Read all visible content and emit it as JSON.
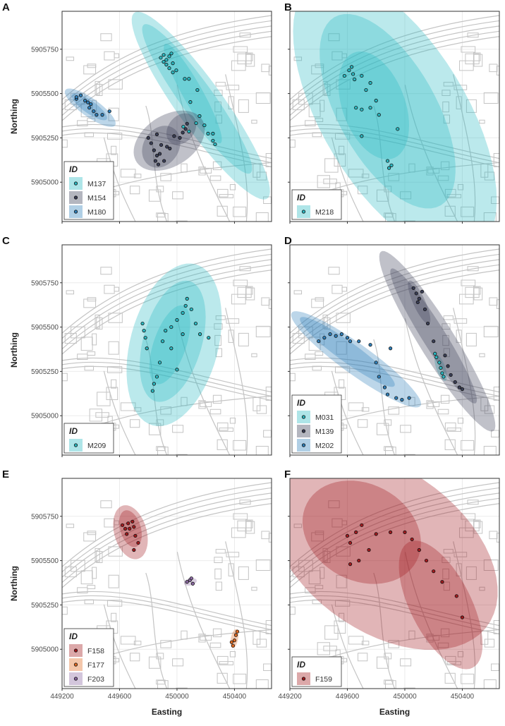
{
  "axes": {
    "x_title": "Easting",
    "y_title": "Northing",
    "x_ticks": [
      449200,
      449600,
      450000,
      450400
    ],
    "y_ticks": [
      5905000,
      5905250,
      5905500,
      5905750
    ],
    "x_tick_labels": [
      "449200",
      "449600",
      "450000",
      "450400"
    ],
    "y_tick_labels": [
      "5905000",
      "5905250",
      "5905500",
      "5905750"
    ],
    "xlim": [
      449200,
      450658
    ],
    "ylim": [
      5904778,
      5905964
    ],
    "grid": true
  },
  "basemap_color": "#c4c4c4",
  "chart_data": [
    {
      "panel": "A",
      "legend_title": "ID",
      "legend_placement": "bottom-left",
      "individuals": [
        {
          "id": "M137",
          "color": "#2bbac3",
          "ranges": [
            {
              "cx": 450166,
              "cy": 5905432,
              "a": 700,
              "b": 150,
              "angle": -48
            },
            {
              "cx": 450140,
              "cy": 5905470,
              "a": 560,
              "b": 105,
              "angle": -48
            },
            {
              "cx": 450110,
              "cy": 5905500,
              "a": 340,
              "b": 65,
              "angle": -55
            }
          ],
          "points": [
            [
              449887,
              5905702
            ],
            [
              449907,
              5905718
            ],
            [
              449926,
              5905690
            ],
            [
              449946,
              5905710
            ],
            [
              449961,
              5905726
            ],
            [
              449926,
              5905663
            ],
            [
              449946,
              5905643
            ],
            [
              449971,
              5905671
            ],
            [
              449907,
              5905679
            ],
            [
              449971,
              5905619
            ],
            [
              449995,
              5905631
            ],
            [
              450054,
              5905583
            ],
            [
              450083,
              5905583
            ],
            [
              450142,
              5905520
            ],
            [
              450093,
              5905452
            ],
            [
              450157,
              5905373
            ],
            [
              450191,
              5905321
            ],
            [
              450133,
              5905333
            ],
            [
              450216,
              5905274
            ],
            [
              450250,
              5905234
            ],
            [
              450265,
              5905214
            ],
            [
              450044,
              5905313
            ],
            [
              450083,
              5905286
            ],
            [
              450250,
              5905274
            ]
          ]
        },
        {
          "id": "M154",
          "color": "#3b3f57",
          "ranges": [
            {
              "cx": 449946,
              "cy": 5905234,
              "a": 260,
              "b": 150,
              "angle": 22
            },
            {
              "cx": 449890,
              "cy": 5905200,
              "a": 140,
              "b": 110,
              "angle": 30
            },
            {
              "cx": 450030,
              "cy": 5905300,
              "a": 110,
              "b": 80,
              "angle": 30
            }
          ],
          "points": [
            [
              449800,
              5905250
            ],
            [
              449820,
              5905220
            ],
            [
              449840,
              5905180
            ],
            [
              449860,
              5905150
            ],
            [
              449850,
              5905120
            ],
            [
              449880,
              5905160
            ],
            [
              449890,
              5905210
            ],
            [
              449910,
              5905120
            ],
            [
              449930,
              5905200
            ],
            [
              449860,
              5905270
            ],
            [
              449950,
              5905190
            ],
            [
              449980,
              5905260
            ],
            [
              450020,
              5905250
            ],
            [
              450040,
              5905280
            ],
            [
              450060,
              5905300
            ],
            [
              450070,
              5905330
            ],
            [
              449870,
              5905100
            ]
          ]
        },
        {
          "id": "M180",
          "color": "#2f80bb",
          "ranges": [
            {
              "cx": 449396,
              "cy": 5905420,
              "a": 200,
              "b": 55,
              "angle": -29
            },
            {
              "cx": 449390,
              "cy": 5905425,
              "a": 140,
              "b": 38,
              "angle": -29
            }
          ],
          "points": [
            [
              449300,
              5905470
            ],
            [
              449330,
              5905490
            ],
            [
              449360,
              5905460
            ],
            [
              449380,
              5905450
            ],
            [
              449400,
              5905440
            ],
            [
              449390,
              5905420
            ],
            [
              449420,
              5905400
            ],
            [
              449440,
              5905380
            ],
            [
              449480,
              5905380
            ],
            [
              449530,
              5905400
            ],
            [
              449300,
              5905480
            ]
          ]
        }
      ]
    },
    {
      "panel": "B",
      "legend_title": "ID",
      "legend_placement": "bottom-left",
      "individuals": [
        {
          "id": "M218",
          "color": "#2bbac3",
          "ranges": [
            {
              "cx": 449931,
              "cy": 5905373,
              "a": 950,
              "b": 470,
              "angle": -50
            },
            {
              "cx": 449880,
              "cy": 5905400,
              "a": 650,
              "b": 320,
              "angle": -52
            },
            {
              "cx": 449784,
              "cy": 5905433,
              "a": 330,
              "b": 210,
              "angle": -60
            }
          ],
          "points": [
            [
              449612,
              5905631
            ],
            [
              449630,
              5905650
            ],
            [
              449640,
              5905610
            ],
            [
              449580,
              5905600
            ],
            [
              449650,
              5905580
            ],
            [
              449700,
              5905600
            ],
            [
              449760,
              5905560
            ],
            [
              449730,
              5905520
            ],
            [
              449660,
              5905420
            ],
            [
              449700,
              5905410
            ],
            [
              449760,
              5905420
            ],
            [
              449800,
              5905460
            ],
            [
              449700,
              5905260
            ],
            [
              449880,
              5905120
            ],
            [
              449907,
              5905095
            ],
            [
              449890,
              5905080
            ],
            [
              449950,
              5905300
            ],
            [
              449820,
              5905380
            ]
          ]
        }
      ]
    },
    {
      "panel": "C",
      "legend_title": "ID",
      "legend_placement": "bottom-left",
      "individuals": [
        {
          "id": "M209",
          "color": "#2bbac3",
          "ranges": [
            {
              "cx": 449980,
              "cy": 5905400,
              "a": 480,
              "b": 300,
              "angle": 68
            },
            {
              "cx": 449970,
              "cy": 5905420,
              "a": 360,
              "b": 200,
              "angle": 68
            },
            {
              "cx": 449950,
              "cy": 5905400,
              "a": 240,
              "b": 110,
              "angle": 65
            }
          ],
          "points": [
            [
              449760,
              5905520
            ],
            [
              449770,
              5905480
            ],
            [
              449780,
              5905440
            ],
            [
              449790,
              5905380
            ],
            [
              449840,
              5905180
            ],
            [
              449830,
              5905140
            ],
            [
              449860,
              5905220
            ],
            [
              449880,
              5905300
            ],
            [
              449900,
              5905420
            ],
            [
              449920,
              5905480
            ],
            [
              449960,
              5905500
            ],
            [
              450000,
              5905540
            ],
            [
              450040,
              5905580
            ],
            [
              450060,
              5905620
            ],
            [
              450070,
              5905660
            ],
            [
              450100,
              5905600
            ],
            [
              450130,
              5905520
            ],
            [
              450160,
              5905460
            ],
            [
              450220,
              5905440
            ],
            [
              450000,
              5905260
            ],
            [
              449960,
              5905380
            ],
            [
              450040,
              5905460
            ]
          ]
        }
      ]
    },
    {
      "panel": "D",
      "legend_title": "ID",
      "legend_placement": "bottom-left",
      "individuals": [
        {
          "id": "M031",
          "color": "#2bbac3",
          "ranges": [
            {
              "cx": 450250,
              "cy": 5905270,
              "a": 80,
              "b": 30,
              "angle": -65
            }
          ],
          "points": [
            [
              450220,
              5905330
            ],
            [
              450240,
              5905300
            ],
            [
              450250,
              5905270
            ],
            [
              450260,
              5905240
            ],
            [
              450270,
              5905220
            ],
            [
              450210,
              5905350
            ]
          ]
        },
        {
          "id": "M139",
          "color": "#3b3f57",
          "ranges": [
            {
              "cx": 450226,
              "cy": 5905420,
              "a": 640,
              "b": 115,
              "angle": -52
            },
            {
              "cx": 450200,
              "cy": 5905450,
              "a": 480,
              "b": 75,
              "angle": -52
            },
            {
              "cx": 450100,
              "cy": 5905640,
              "a": 140,
              "b": 40,
              "angle": -60
            }
          ],
          "points": [
            [
              450060,
              5905720
            ],
            [
              450080,
              5905690
            ],
            [
              450100,
              5905660
            ],
            [
              450120,
              5905700
            ],
            [
              450090,
              5905640
            ],
            [
              450140,
              5905600
            ],
            [
              450160,
              5905520
            ],
            [
              450200,
              5905420
            ],
            [
              450280,
              5905340
            ],
            [
              450300,
              5905280
            ],
            [
              450320,
              5905230
            ],
            [
              450350,
              5905190
            ],
            [
              450380,
              5905160
            ],
            [
              450400,
              5905150
            ]
          ]
        },
        {
          "id": "M202",
          "color": "#2f80bb",
          "ranges": [
            {
              "cx": 449661,
              "cy": 5905318,
              "a": 520,
              "b": 90,
              "angle": -30
            },
            {
              "cx": 449600,
              "cy": 5905360,
              "a": 380,
              "b": 60,
              "angle": -30
            }
          ],
          "points": [
            [
              449400,
              5905420
            ],
            [
              449440,
              5905440
            ],
            [
              449480,
              5905460
            ],
            [
              449520,
              5905450
            ],
            [
              449560,
              5905460
            ],
            [
              449600,
              5905440
            ],
            [
              449620,
              5905420
            ],
            [
              449680,
              5905420
            ],
            [
              449760,
              5905400
            ],
            [
              449800,
              5905300
            ],
            [
              449820,
              5905220
            ],
            [
              449860,
              5905160
            ],
            [
              449880,
              5905120
            ],
            [
              449940,
              5905100
            ],
            [
              449980,
              5905090
            ],
            [
              450030,
              5905100
            ],
            [
              449900,
              5905380
            ]
          ]
        }
      ]
    },
    {
      "panel": "E",
      "legend_title": "ID",
      "legend_placement": "bottom-left",
      "individuals": [
        {
          "id": "F158",
          "color": "#a31a1e",
          "ranges": [
            {
              "cx": 449676,
              "cy": 5905660,
              "a": 160,
              "b": 110,
              "angle": -65
            },
            {
              "cx": 449676,
              "cy": 5905680,
              "a": 110,
              "b": 70,
              "angle": -65
            }
          ],
          "points": [
            [
              449620,
              5905700
            ],
            [
              449640,
              5905680
            ],
            [
              449660,
              5905710
            ],
            [
              449690,
              5905720
            ],
            [
              449700,
              5905690
            ],
            [
              449650,
              5905650
            ],
            [
              449710,
              5905640
            ],
            [
              449730,
              5905600
            ],
            [
              449700,
              5905560
            ],
            [
              449670,
              5905680
            ]
          ]
        },
        {
          "id": "F177",
          "color": "#e36b22",
          "ranges": [
            {
              "cx": 450400,
              "cy": 5905060,
              "a": 55,
              "b": 25,
              "angle": 75
            }
          ],
          "points": [
            [
              450390,
              5905020
            ],
            [
              450400,
              5905050
            ],
            [
              450410,
              5905080
            ],
            [
              450380,
              5905040
            ],
            [
              450420,
              5905100
            ]
          ]
        },
        {
          "id": "F203",
          "color": "#8c6aa3",
          "ranges": [
            {
              "cx": 450093,
              "cy": 5905380,
              "a": 45,
              "b": 20,
              "angle": 10
            }
          ],
          "points": [
            [
              450070,
              5905380
            ],
            [
              450090,
              5905390
            ],
            [
              450110,
              5905370
            ],
            [
              450100,
              5905400
            ]
          ]
        }
      ]
    },
    {
      "panel": "F",
      "legend_title": "ID",
      "legend_placement": "bottom-left",
      "individuals": [
        {
          "id": "F159",
          "color": "#a31a1e",
          "ranges": [
            {
              "cx": 449850,
              "cy": 5905560,
              "a": 850,
              "b": 480,
              "angle": -25
            },
            {
              "cx": 450250,
              "cy": 5905250,
              "a": 420,
              "b": 200,
              "angle": -55
            },
            {
              "cx": 449700,
              "cy": 5905660,
              "a": 420,
              "b": 280,
              "angle": -15
            }
          ],
          "points": [
            [
              449600,
              5905640
            ],
            [
              449620,
              5905600
            ],
            [
              449660,
              5905660
            ],
            [
              449700,
              5905700
            ],
            [
              449620,
              5905480
            ],
            [
              449680,
              5905500
            ],
            [
              449750,
              5905560
            ],
            [
              449800,
              5905650
            ],
            [
              449900,
              5905660
            ],
            [
              450000,
              5905660
            ],
            [
              450050,
              5905620
            ],
            [
              450100,
              5905560
            ],
            [
              450150,
              5905500
            ],
            [
              450200,
              5905440
            ],
            [
              450260,
              5905380
            ],
            [
              450360,
              5905300
            ],
            [
              450400,
              5905180
            ]
          ]
        }
      ]
    }
  ]
}
